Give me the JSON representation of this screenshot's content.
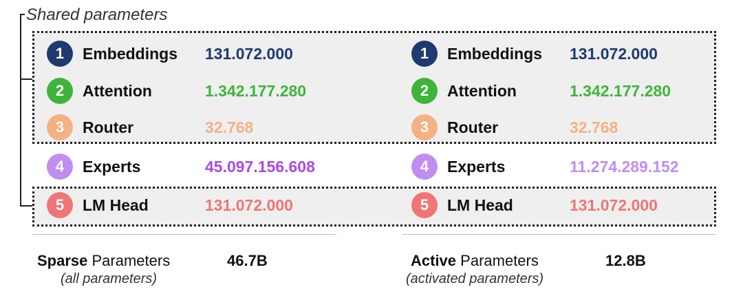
{
  "shared_label": "Shared parameters",
  "colors": {
    "embeddings": "#1e3a6e",
    "attention": "#3fb43a",
    "router": "#f4b183",
    "experts_badge": "#c18ef0",
    "experts_sparse_value": "#a64be8",
    "experts_active_value": "#c18ef0",
    "lm_head": "#f07575"
  },
  "sparse": {
    "rows": [
      {
        "num": "1",
        "name": "Embeddings",
        "value": "131.072.000"
      },
      {
        "num": "2",
        "name": "Attention",
        "value": "1.342.177.280"
      },
      {
        "num": "3",
        "name": "Router",
        "value": "32.768"
      },
      {
        "num": "4",
        "name": "Experts",
        "value": "45.097.156.608"
      },
      {
        "num": "5",
        "name": "LM Head",
        "value": "131.072.000"
      }
    ],
    "title_bold": "Sparse",
    "title_rest": " Parameters",
    "subtitle": "(all parameters)",
    "total": "46.7B"
  },
  "active": {
    "rows": [
      {
        "num": "1",
        "name": "Embeddings",
        "value": "131.072.000"
      },
      {
        "num": "2",
        "name": "Attention",
        "value": "1.342.177.280"
      },
      {
        "num": "3",
        "name": "Router",
        "value": "32.768"
      },
      {
        "num": "4",
        "name": "Experts",
        "value": "11.274.289.152"
      },
      {
        "num": "5",
        "name": "LM Head",
        "value": "131.072.000"
      }
    ],
    "title_bold": "Active",
    "title_rest": " Parameters",
    "subtitle": "(activated parameters)",
    "total": "12.8B"
  }
}
